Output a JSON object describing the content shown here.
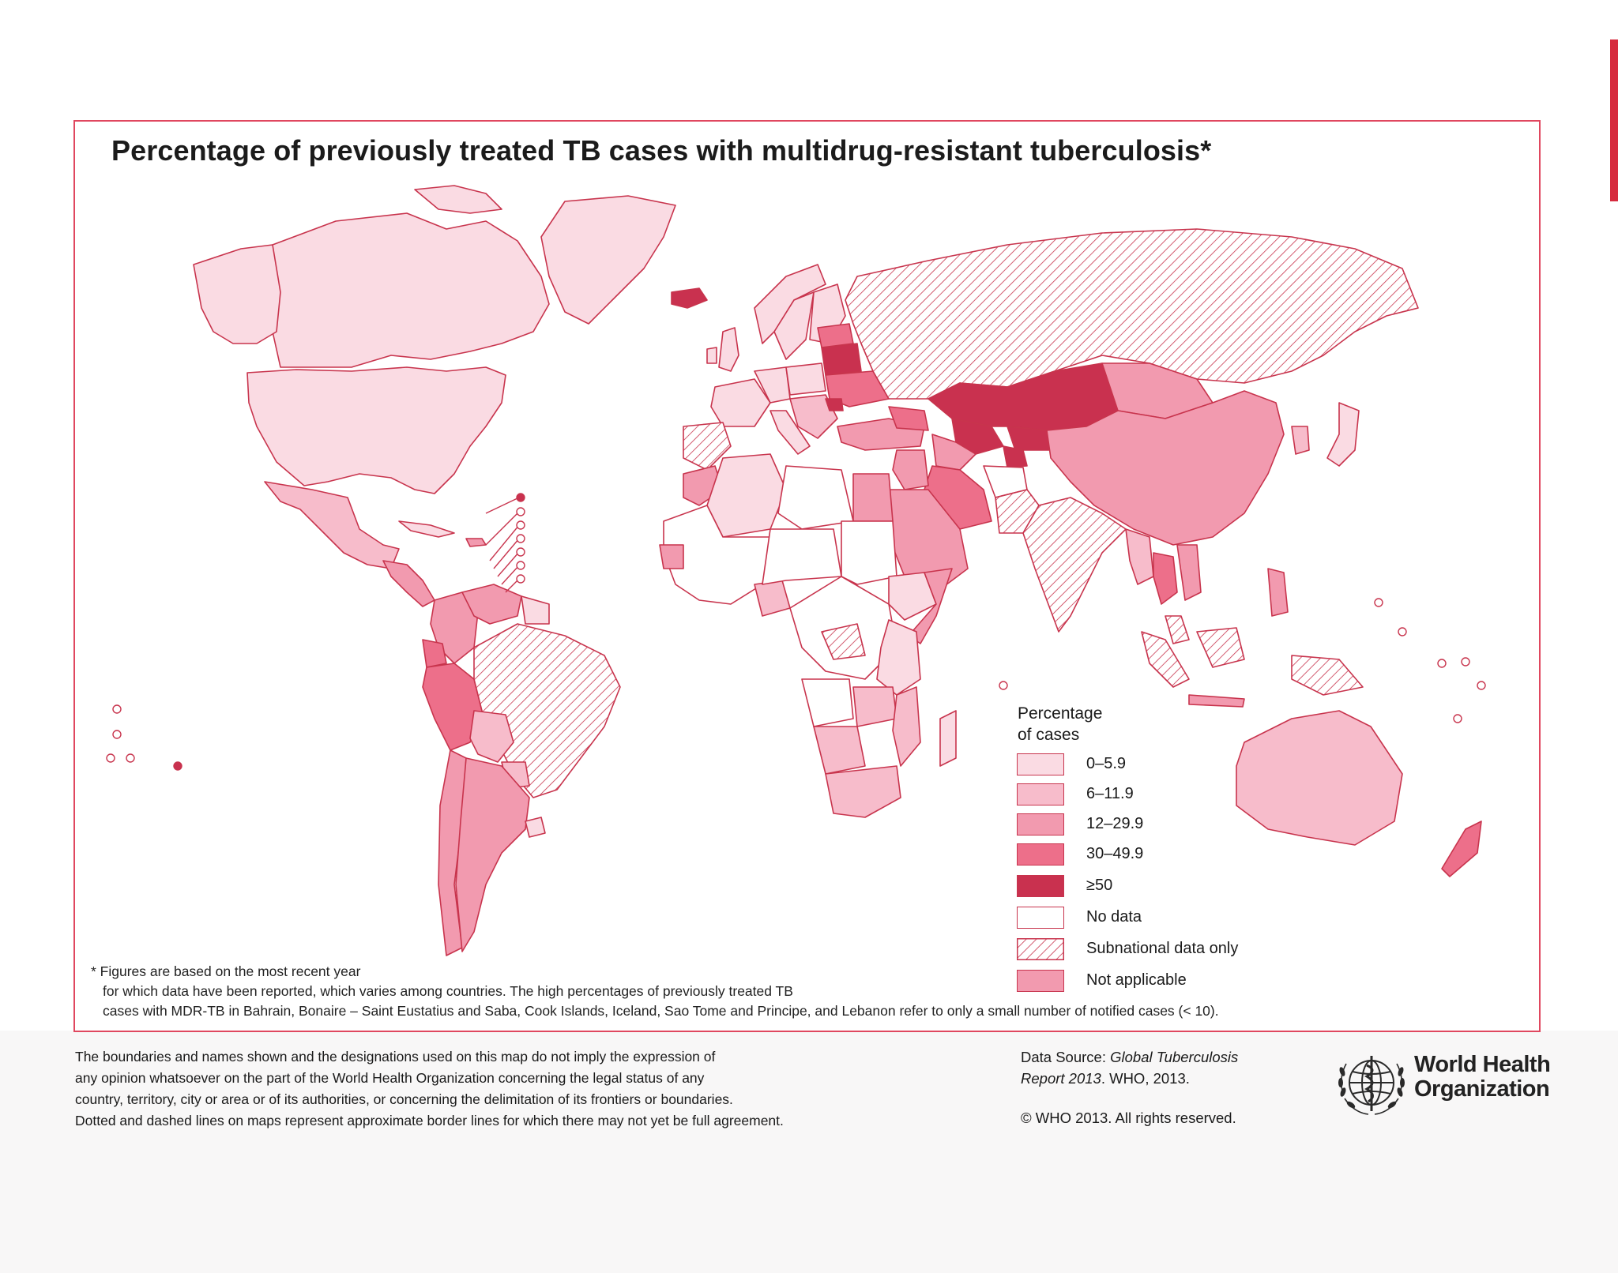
{
  "map": {
    "title": "Percentage of previously treated TB cases with multidrug-resistant tuberculosis*",
    "colors": {
      "c0": "#fadbe3",
      "c6": "#f7bccb",
      "c12": "#f29aaf",
      "c30": "#ed6f8a",
      "c50": "#c9314f",
      "nodata": "#ffffff",
      "border": "#c8344d"
    },
    "legend": {
      "title_line1": "Percentage",
      "title_line2": "of cases",
      "items": [
        {
          "label": "0–5.9",
          "color": "#fadbe3",
          "pattern": "solid"
        },
        {
          "label": "6–11.9",
          "color": "#f7bccb",
          "pattern": "solid"
        },
        {
          "label": "12–29.9",
          "color": "#f29aaf",
          "pattern": "solid"
        },
        {
          "label": "30–49.9",
          "color": "#ed6f8a",
          "pattern": "solid"
        },
        {
          "label": "≥50",
          "color": "#c9314f",
          "pattern": "solid"
        },
        {
          "label": "No data",
          "color": "#ffffff",
          "pattern": "solid"
        },
        {
          "label": "Subnational data only",
          "color": "#ffffff",
          "pattern": "hatched"
        },
        {
          "label": "Not applicable",
          "color": "#f29aaf",
          "pattern": "solid"
        }
      ]
    },
    "footnote": {
      "line1": "* Figures are based on the most recent year",
      "line2": "for which data have been reported, which varies among countries.  The high percentages of previously treated TB",
      "line3": "cases with MDR-TB in Bahrain, Bonaire – Saint Eustatius and Saba, Cook Islands, Iceland, Sao Tome and Principe, and Lebanon refer to only a small number of notified cases (< 10)."
    }
  },
  "disclaimer": {
    "line1": "The boundaries and names shown and the designations used on this map do not imply the expression of",
    "line2": "any opinion whatsoever on the part of the World Health Organization concerning the legal status of any",
    "line3": "country, territory, city or area or of its authorities, or concerning the delimitation of its frontiers or boundaries.",
    "line4": "Dotted and dashed lines on maps represent approximate border lines for which there may not yet be full agreement."
  },
  "source": {
    "prefix": "Data Source: ",
    "publication_line1": "Global Tuberculosis",
    "publication_line2": "Report 2013",
    "suffix": ". WHO, 2013.",
    "copyright": "© WHO 2013. All rights reserved."
  },
  "who": {
    "name_line1": "World Health",
    "name_line2": "Organization",
    "emblem_icon": "who-emblem-icon"
  }
}
